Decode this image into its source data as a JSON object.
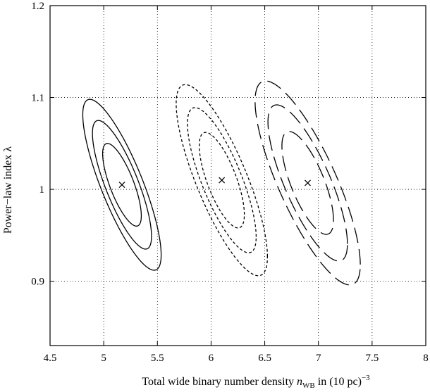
{
  "chart_data": {
    "type": "contour",
    "title": "",
    "xlabel": {
      "main": "Total wide binary number density ",
      "symbol": "n",
      "symbol_sub": "WB",
      "suffix": " in (10 pc)",
      "suffix_sup": "−3"
    },
    "ylabel": "Power−law index λ",
    "xlim": [
      4.5,
      8.0
    ],
    "ylim": [
      0.83,
      1.2
    ],
    "x_ticks": [
      4.5,
      5,
      5.5,
      6,
      6.5,
      7,
      7.5,
      8
    ],
    "x_tick_labels": [
      "4.5",
      "5",
      "5.5",
      "6",
      "6.5",
      "7",
      "7.5",
      "8"
    ],
    "y_ticks": [
      0.9,
      1.0,
      1.1,
      1.2
    ],
    "y_tick_labels": [
      "0.9",
      "1",
      "1.1",
      "1.2"
    ],
    "grid": true,
    "grid_style": "dotted",
    "color": "#000000",
    "series": [
      {
        "line_style": "solid",
        "best_fit": {
          "x": 5.17,
          "y": 1.005
        },
        "contours": [
          {
            "cx": 5.17,
            "cy": 1.005,
            "sx": 0.18,
            "sy": 0.045,
            "rho": -0.75
          },
          {
            "cx": 5.17,
            "cy": 1.005,
            "sx": 0.275,
            "sy": 0.07,
            "rho": -0.8
          },
          {
            "cx": 5.17,
            "cy": 1.005,
            "sx": 0.365,
            "sy": 0.093,
            "rho": -0.82
          }
        ]
      },
      {
        "line_style": "short-dash",
        "best_fit": {
          "x": 6.1,
          "y": 1.01
        },
        "contours": [
          {
            "cx": 6.1,
            "cy": 1.01,
            "sx": 0.21,
            "sy": 0.052,
            "rho": -0.72
          },
          {
            "cx": 6.1,
            "cy": 1.01,
            "sx": 0.32,
            "sy": 0.079,
            "rho": -0.78
          },
          {
            "cx": 6.1,
            "cy": 1.01,
            "sx": 0.425,
            "sy": 0.104,
            "rho": -0.8
          }
        ]
      },
      {
        "line_style": "long-dash",
        "best_fit": {
          "x": 6.9,
          "y": 1.007
        },
        "contours": [
          {
            "cx": 6.9,
            "cy": 1.007,
            "sx": 0.24,
            "sy": 0.056,
            "rho": -0.72
          },
          {
            "cx": 6.9,
            "cy": 1.007,
            "sx": 0.37,
            "sy": 0.085,
            "rho": -0.78
          },
          {
            "cx": 6.9,
            "cy": 1.007,
            "sx": 0.49,
            "sy": 0.111,
            "rho": -0.8
          }
        ]
      }
    ]
  }
}
